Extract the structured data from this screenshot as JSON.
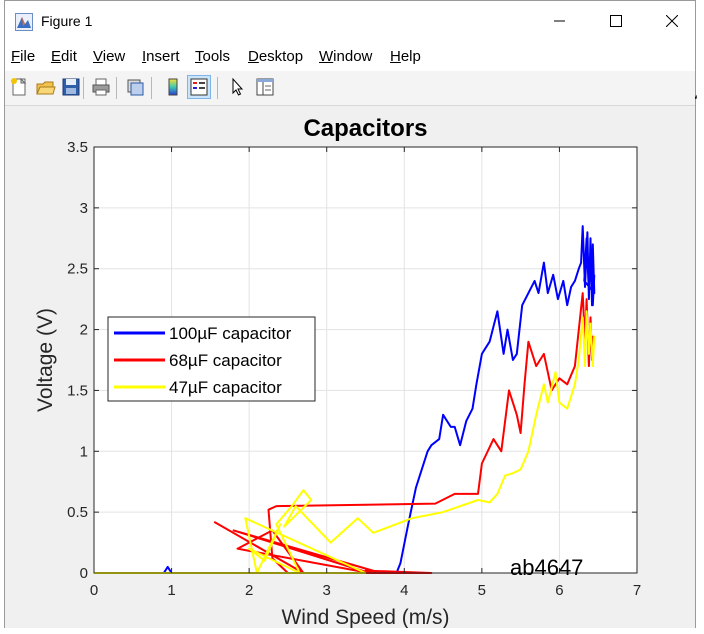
{
  "window": {
    "title": "Figure 1",
    "icons": {
      "app": "matlab-figure-icon",
      "minimize": "minimize-icon",
      "maximize": "maximize-icon",
      "close": "close-icon"
    }
  },
  "menu": [
    "File",
    "Edit",
    "View",
    "Insert",
    "Tools",
    "Desktop",
    "Window",
    "Help"
  ],
  "menu_accel": [
    "F",
    "E",
    "V",
    "I",
    "T",
    "D",
    "W",
    "H"
  ],
  "toolbar": {
    "buttons": [
      "new-figure-icon",
      "open-file-icon",
      "save-icon",
      "print-icon",
      "link-plot-icon",
      "colorbar-icon",
      "legend-icon",
      "pointer-icon",
      "property-editor-icon"
    ],
    "active": [
      "legend-icon"
    ]
  },
  "watermark": "ab4647",
  "chart_data": {
    "type": "line",
    "title": "Capacitors",
    "xlabel": "Wind Speed (m/s)",
    "ylabel": "Voltage (V)",
    "xlim": [
      0,
      7
    ],
    "ylim": [
      0,
      3.5
    ],
    "xticks": [
      "0",
      "1",
      "2",
      "3",
      "4",
      "5",
      "6",
      "7"
    ],
    "yticks": [
      "0",
      "0.5",
      "1",
      "1.5",
      "2",
      "2.5",
      "3",
      "3.5"
    ],
    "grid": true,
    "legend_position": "center-left",
    "series": [
      {
        "name": "100µF capacitor",
        "color": "#0000ff",
        "x": [
          0,
          0.9,
          0.95,
          1.0,
          3.9,
          3.95,
          4.05,
          4.15,
          4.2,
          4.3,
          4.35,
          4.45,
          4.5,
          4.6,
          4.65,
          4.72,
          4.8,
          4.88,
          4.93,
          5.0,
          5.05,
          5.1,
          5.2,
          5.28,
          5.33,
          5.4,
          5.45,
          5.52,
          5.6,
          5.68,
          5.73,
          5.8,
          5.85,
          5.92,
          5.98,
          6.05,
          6.1,
          6.15,
          6.2,
          6.25,
          6.28,
          6.3,
          6.33,
          6.36,
          6.38,
          6.4,
          6.42,
          6.43,
          6.45,
          6.32,
          6.35,
          6.38,
          6.4,
          6.43,
          6.45
        ],
        "y": [
          0,
          0,
          0.05,
          0,
          0,
          0.08,
          0.4,
          0.7,
          0.8,
          1.0,
          1.05,
          1.1,
          1.3,
          1.2,
          1.2,
          1.05,
          1.25,
          1.35,
          1.55,
          1.8,
          1.85,
          1.9,
          2.15,
          1.8,
          2.0,
          1.75,
          1.8,
          2.2,
          2.3,
          2.4,
          2.3,
          2.55,
          2.3,
          2.45,
          2.25,
          2.4,
          2.2,
          2.35,
          2.4,
          2.5,
          2.55,
          2.85,
          2.35,
          2.8,
          2.25,
          2.75,
          2.2,
          2.7,
          2.3,
          2.4,
          2.75,
          2.3,
          2.6,
          2.2,
          2.45
        ]
      },
      {
        "name": "68µF capacitor",
        "color": "#ff0000",
        "x": [
          1.55,
          2.7,
          2.3,
          1.85,
          3.55,
          1.8,
          3.7,
          3.5,
          4.35,
          2.5,
          2.3,
          2.25,
          2.35,
          4.4,
          4.65,
          4.95,
          5.0,
          5.15,
          5.25,
          5.35,
          5.45,
          5.5,
          5.55,
          5.6,
          5.7,
          5.8,
          5.9,
          6.0,
          6.1,
          6.2,
          6.25,
          6.3,
          6.33,
          6.35,
          6.38,
          6.4,
          6.42,
          6.43
        ],
        "y": [
          0.42,
          0.0,
          0.35,
          0.2,
          0.0,
          0.35,
          0.0,
          0.02,
          0.0,
          0.0,
          0.12,
          0.52,
          0.55,
          0.57,
          0.65,
          0.65,
          0.9,
          1.1,
          1.0,
          1.5,
          1.3,
          1.15,
          1.55,
          1.9,
          1.7,
          1.8,
          1.5,
          1.6,
          1.55,
          1.7,
          2.0,
          2.3,
          1.9,
          2.25,
          1.7,
          2.1,
          1.75,
          1.95
        ]
      },
      {
        "name": "47µF capacitor",
        "color": "#ffff00",
        "x": [
          0,
          3.5,
          1.95,
          2.1,
          2.4,
          2.2,
          2.0,
          2.65,
          2.35,
          2.55,
          2.7,
          2.8,
          2.45,
          2.6,
          3.05,
          3.4,
          3.6,
          4.1,
          4.5,
          4.95,
          5.1,
          5.2,
          5.3,
          5.4,
          5.5,
          5.6,
          5.7,
          5.8,
          5.85,
          5.95,
          6.0,
          6.1,
          6.2,
          6.25,
          6.3,
          6.33,
          6.35,
          6.38,
          6.4,
          6.43,
          6.45
        ],
        "y": [
          0,
          0,
          0.45,
          0.0,
          0.4,
          0.1,
          0.2,
          0.0,
          0.4,
          0.55,
          0.68,
          0.6,
          0.38,
          0.55,
          0.25,
          0.45,
          0.33,
          0.45,
          0.5,
          0.6,
          0.58,
          0.65,
          0.8,
          0.82,
          0.85,
          1.0,
          1.3,
          1.55,
          1.4,
          1.65,
          1.4,
          1.35,
          1.55,
          1.75,
          2.1,
          1.7,
          2.15,
          1.8,
          2.05,
          1.7,
          1.95
        ]
      }
    ]
  }
}
